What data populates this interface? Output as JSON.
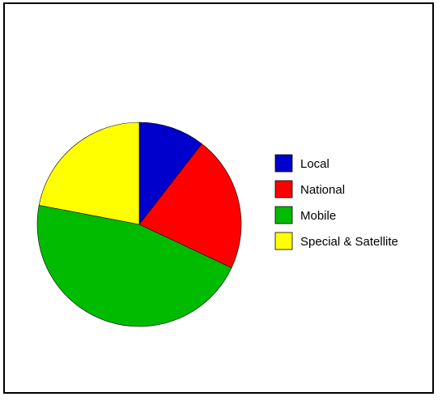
{
  "chart_data": {
    "type": "pie",
    "title": "",
    "legend_position": "right",
    "slices": [
      {
        "label": "Local",
        "value": 10.5,
        "color": "#0000CC"
      },
      {
        "label": "National",
        "value": 21.5,
        "color": "#FF0000"
      },
      {
        "label": "Mobile",
        "value": 46.0,
        "color": "#00BB00"
      },
      {
        "label": "Special & Satellite",
        "value": 22.0,
        "color": "#FFFF00"
      }
    ]
  }
}
